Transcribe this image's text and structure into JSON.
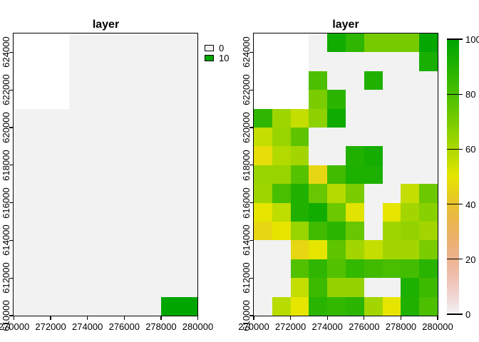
{
  "axes": {
    "x_tick_labels": [
      "270000",
      "272000",
      "274000",
      "276000",
      "278000",
      "280000"
    ],
    "y_tick_labels_bottom_to_top": [
      "610000",
      "612000",
      "614000",
      "616000",
      "618000",
      "620000",
      "622000",
      "624000"
    ]
  },
  "palette": {
    "name": "reversed-terrain-colors",
    "color_at_0": "#F2F2F2",
    "color_at_50": "#E6E600",
    "color_at_100": "#00A600",
    "na_color": "#FFFFFF"
  },
  "chart_data": [
    {
      "type": "heatmap",
      "title": "layer",
      "x_range": [
        270000,
        280000
      ],
      "y_range": [
        610000,
        625000
      ],
      "cell_size": 1000,
      "vmin": 0,
      "vmax": 10,
      "legend": {
        "style": "classified",
        "entries": [
          {
            "label": "0",
            "value": 0
          },
          {
            "label": "10",
            "value": 10
          }
        ]
      },
      "rows_top_to_bottom": [
        [
          null,
          null,
          null,
          0,
          0,
          0,
          0,
          0,
          0,
          0
        ],
        [
          null,
          null,
          null,
          0,
          0,
          0,
          0,
          0,
          0,
          0
        ],
        [
          null,
          null,
          null,
          0,
          0,
          0,
          0,
          0,
          0,
          0
        ],
        [
          null,
          null,
          null,
          0,
          0,
          0,
          0,
          0,
          0,
          0
        ],
        [
          0,
          0,
          0,
          0,
          0,
          0,
          0,
          0,
          0,
          0
        ],
        [
          0,
          0,
          0,
          0,
          0,
          0,
          0,
          0,
          0,
          0
        ],
        [
          0,
          0,
          0,
          0,
          0,
          0,
          0,
          0,
          0,
          0
        ],
        [
          0,
          0,
          0,
          0,
          0,
          0,
          0,
          0,
          0,
          0
        ],
        [
          0,
          0,
          0,
          0,
          0,
          0,
          0,
          0,
          0,
          0
        ],
        [
          0,
          0,
          0,
          0,
          0,
          0,
          0,
          0,
          0,
          0
        ],
        [
          0,
          0,
          0,
          0,
          0,
          0,
          0,
          0,
          0,
          0
        ],
        [
          0,
          0,
          0,
          0,
          0,
          0,
          0,
          0,
          0,
          0
        ],
        [
          0,
          0,
          0,
          0,
          0,
          0,
          0,
          0,
          0,
          0
        ],
        [
          0,
          0,
          0,
          0,
          0,
          0,
          0,
          0,
          0,
          0
        ],
        [
          0,
          0,
          0,
          0,
          0,
          0,
          0,
          0,
          10,
          10
        ]
      ]
    },
    {
      "type": "heatmap",
      "title": "layer",
      "x_range": [
        270000,
        280000
      ],
      "y_range": [
        610000,
        625000
      ],
      "cell_size": 1000,
      "vmin": 0,
      "vmax": 100,
      "legend": {
        "style": "colorbar",
        "ticks": [
          0,
          20,
          40,
          60,
          80,
          100
        ]
      },
      "rows_top_to_bottom": [
        [
          null,
          null,
          null,
          0,
          95,
          87,
          71,
          71,
          71,
          99
        ],
        [
          null,
          null,
          null,
          0,
          0,
          0,
          0,
          0,
          0,
          93
        ],
        [
          null,
          null,
          null,
          80,
          0,
          0,
          91,
          0,
          0,
          0
        ],
        [
          null,
          null,
          null,
          70,
          88,
          0,
          0,
          0,
          0,
          0
        ],
        [
          87,
          63,
          56,
          66,
          96,
          0,
          0,
          0,
          0,
          0
        ],
        [
          56,
          64,
          76,
          0,
          0,
          0,
          0,
          0,
          0,
          0
        ],
        [
          48,
          59,
          62,
          0,
          0,
          91,
          94,
          0,
          0,
          0
        ],
        [
          64,
          64,
          78,
          46,
          83,
          92,
          92,
          0,
          0,
          0
        ],
        [
          63,
          81,
          91,
          74,
          59,
          70,
          0,
          0,
          56,
          73
        ],
        [
          50,
          57,
          91,
          95,
          73,
          51,
          0,
          50,
          62,
          67
        ],
        [
          46,
          50,
          64,
          83,
          88,
          74,
          0,
          63,
          65,
          62
        ],
        [
          0,
          0,
          46,
          50,
          76,
          62,
          56,
          62,
          62,
          70
        ],
        [
          0,
          0,
          79,
          87,
          79,
          86,
          83,
          81,
          82,
          89
        ],
        [
          0,
          0,
          56,
          84,
          65,
          65,
          0,
          0,
          92,
          84
        ],
        [
          0,
          58,
          50,
          89,
          86,
          88,
          62,
          50,
          91,
          80
        ]
      ]
    }
  ]
}
